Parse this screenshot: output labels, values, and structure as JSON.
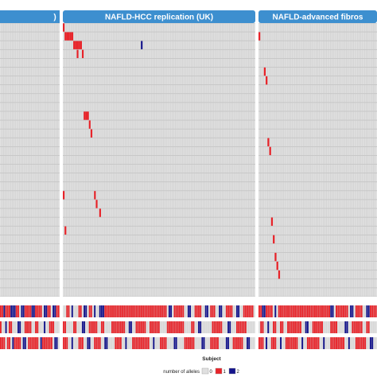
{
  "chart_data": {
    "type": "heatmap",
    "title": "",
    "xlabel": "Subject",
    "legend": {
      "title": "number of alleles",
      "placement": "bottom-center",
      "entries": [
        {
          "value": 0,
          "label": "0",
          "color": "#e0e0e0"
        },
        {
          "value": 1,
          "label": "1",
          "color": "#e8242a"
        },
        {
          "value": 2,
          "label": "2",
          "color": "#14148c"
        }
      ]
    },
    "panels": [
      {
        "title": ")",
        "columns": 34
      },
      {
        "title": "NAFLD-HCC replication (UK)",
        "columns": 111
      },
      {
        "title": "NAFLD-advanced fibros",
        "columns": 66
      }
    ],
    "rare_variant_rows": 31,
    "rare_variant_calls": [
      {
        "panel": 1,
        "row": 0,
        "col": 0,
        "alleles": 1
      },
      {
        "panel": 1,
        "row": 1,
        "col": 1,
        "alleles": 1
      },
      {
        "panel": 1,
        "row": 1,
        "col": 2,
        "alleles": 1
      },
      {
        "panel": 1,
        "row": 1,
        "col": 3,
        "alleles": 1
      },
      {
        "panel": 1,
        "row": 1,
        "col": 4,
        "alleles": 1
      },
      {
        "panel": 1,
        "row": 1,
        "col": 5,
        "alleles": 1
      },
      {
        "panel": 1,
        "row": 2,
        "col": 6,
        "alleles": 1
      },
      {
        "panel": 1,
        "row": 2,
        "col": 7,
        "alleles": 1
      },
      {
        "panel": 1,
        "row": 2,
        "col": 8,
        "alleles": 1
      },
      {
        "panel": 1,
        "row": 2,
        "col": 9,
        "alleles": 1
      },
      {
        "panel": 1,
        "row": 2,
        "col": 10,
        "alleles": 1
      },
      {
        "panel": 1,
        "row": 2,
        "col": 45,
        "alleles": 2
      },
      {
        "panel": 1,
        "row": 3,
        "col": 8,
        "alleles": 1
      },
      {
        "panel": 1,
        "row": 3,
        "col": 11,
        "alleles": 1
      },
      {
        "panel": 1,
        "row": 10,
        "col": 12,
        "alleles": 1
      },
      {
        "panel": 1,
        "row": 10,
        "col": 13,
        "alleles": 1
      },
      {
        "panel": 1,
        "row": 10,
        "col": 14,
        "alleles": 1
      },
      {
        "panel": 1,
        "row": 11,
        "col": 15,
        "alleles": 1
      },
      {
        "panel": 1,
        "row": 12,
        "col": 16,
        "alleles": 1
      },
      {
        "panel": 1,
        "row": 19,
        "col": 0,
        "alleles": 1
      },
      {
        "panel": 1,
        "row": 19,
        "col": 18,
        "alleles": 1
      },
      {
        "panel": 1,
        "row": 20,
        "col": 19,
        "alleles": 1
      },
      {
        "panel": 1,
        "row": 21,
        "col": 21,
        "alleles": 1
      },
      {
        "panel": 1,
        "row": 23,
        "col": 1,
        "alleles": 1
      },
      {
        "panel": 2,
        "row": 1,
        "col": 0,
        "alleles": 1
      },
      {
        "panel": 2,
        "row": 5,
        "col": 3,
        "alleles": 1
      },
      {
        "panel": 2,
        "row": 6,
        "col": 4,
        "alleles": 1
      },
      {
        "panel": 2,
        "row": 13,
        "col": 5,
        "alleles": 1
      },
      {
        "panel": 2,
        "row": 14,
        "col": 6,
        "alleles": 1
      },
      {
        "panel": 2,
        "row": 22,
        "col": 7,
        "alleles": 1
      },
      {
        "panel": 2,
        "row": 24,
        "col": 8,
        "alleles": 1
      },
      {
        "panel": 2,
        "row": 26,
        "col": 9,
        "alleles": 1
      },
      {
        "panel": 2,
        "row": 27,
        "col": 10,
        "alleles": 1
      },
      {
        "panel": 2,
        "row": 28,
        "col": 11,
        "alleles": 1
      }
    ],
    "common_variant_rows": [
      {
        "row": 0,
        "panel": 0,
        "runs": [
          [
            0,
            2,
            1
          ],
          [
            2,
            3,
            2
          ],
          [
            3,
            6,
            1
          ],
          [
            6,
            9,
            2
          ],
          [
            9,
            11,
            1
          ],
          [
            12,
            14,
            2
          ],
          [
            14,
            18,
            1
          ],
          [
            18,
            20,
            2
          ],
          [
            20,
            24,
            1
          ],
          [
            25,
            27,
            2
          ],
          [
            27,
            29,
            1
          ],
          [
            30,
            32,
            2
          ],
          [
            32,
            34,
            1
          ]
        ]
      },
      {
        "row": 1,
        "panel": 0,
        "runs": [
          [
            0,
            1,
            1
          ],
          [
            3,
            4,
            2
          ],
          [
            5,
            7,
            1
          ],
          [
            10,
            12,
            2
          ],
          [
            14,
            18,
            1
          ],
          [
            20,
            22,
            1
          ],
          [
            25,
            26,
            2
          ],
          [
            28,
            31,
            1
          ]
        ]
      },
      {
        "row": 2,
        "panel": 0,
        "runs": [
          [
            0,
            3,
            1
          ],
          [
            4,
            6,
            1
          ],
          [
            7,
            8,
            2
          ],
          [
            8,
            12,
            1
          ],
          [
            13,
            15,
            2
          ],
          [
            16,
            22,
            1
          ],
          [
            23,
            24,
            2
          ],
          [
            24,
            30,
            1
          ],
          [
            31,
            33,
            2
          ]
        ]
      },
      {
        "row": 0,
        "panel": 1,
        "runs": [
          [
            2,
            4,
            1
          ],
          [
            5,
            6,
            2
          ],
          [
            9,
            11,
            1
          ],
          [
            12,
            14,
            2
          ],
          [
            15,
            17,
            1
          ],
          [
            18,
            19,
            2
          ],
          [
            21,
            24,
            2
          ],
          [
            24,
            60,
            1
          ],
          [
            61,
            63,
            2
          ],
          [
            64,
            70,
            1
          ],
          [
            72,
            74,
            2
          ],
          [
            76,
            80,
            1
          ],
          [
            82,
            84,
            2
          ],
          [
            85,
            88,
            1
          ],
          [
            90,
            92,
            2
          ],
          [
            94,
            98,
            1
          ],
          [
            100,
            102,
            2
          ],
          [
            104,
            110,
            1
          ]
        ]
      },
      {
        "row": 1,
        "panel": 1,
        "runs": [
          [
            0,
            2,
            1
          ],
          [
            6,
            8,
            1
          ],
          [
            11,
            13,
            2
          ],
          [
            15,
            20,
            1
          ],
          [
            22,
            24,
            1
          ],
          [
            28,
            36,
            1
          ],
          [
            38,
            40,
            2
          ],
          [
            42,
            48,
            1
          ],
          [
            50,
            56,
            1
          ],
          [
            60,
            70,
            1
          ],
          [
            74,
            76,
            1
          ],
          [
            78,
            80,
            2
          ],
          [
            86,
            92,
            1
          ],
          [
            95,
            97,
            2
          ],
          [
            100,
            106,
            1
          ]
        ]
      },
      {
        "row": 2,
        "panel": 1,
        "runs": [
          [
            0,
            3,
            1
          ],
          [
            5,
            6,
            2
          ],
          [
            9,
            12,
            1
          ],
          [
            14,
            16,
            2
          ],
          [
            18,
            22,
            1
          ],
          [
            24,
            26,
            2
          ],
          [
            30,
            34,
            1
          ],
          [
            36,
            37,
            2
          ],
          [
            40,
            50,
            1
          ],
          [
            52,
            53,
            2
          ],
          [
            56,
            60,
            1
          ],
          [
            64,
            66,
            2
          ],
          [
            70,
            76,
            1
          ],
          [
            80,
            82,
            2
          ],
          [
            85,
            90,
            1
          ],
          [
            94,
            96,
            2
          ],
          [
            98,
            104,
            1
          ],
          [
            106,
            108,
            2
          ]
        ]
      },
      {
        "row": 0,
        "panel": 2,
        "runs": [
          [
            0,
            2,
            1
          ],
          [
            2,
            4,
            2
          ],
          [
            4,
            8,
            1
          ],
          [
            9,
            10,
            2
          ],
          [
            11,
            40,
            1
          ],
          [
            40,
            42,
            2
          ],
          [
            43,
            50,
            1
          ],
          [
            51,
            53,
            2
          ],
          [
            54,
            58,
            1
          ],
          [
            60,
            62,
            2
          ],
          [
            62,
            66,
            1
          ]
        ]
      },
      {
        "row": 1,
        "panel": 2,
        "runs": [
          [
            1,
            3,
            1
          ],
          [
            5,
            6,
            2
          ],
          [
            8,
            10,
            1
          ],
          [
            12,
            14,
            1
          ],
          [
            16,
            24,
            1
          ],
          [
            26,
            28,
            2
          ],
          [
            30,
            36,
            1
          ],
          [
            40,
            44,
            1
          ],
          [
            48,
            50,
            2
          ],
          [
            52,
            58,
            1
          ],
          [
            60,
            62,
            1
          ]
        ]
      },
      {
        "row": 2,
        "panel": 2,
        "runs": [
          [
            0,
            3,
            1
          ],
          [
            4,
            5,
            2
          ],
          [
            7,
            10,
            1
          ],
          [
            12,
            13,
            2
          ],
          [
            15,
            22,
            1
          ],
          [
            24,
            25,
            2
          ],
          [
            27,
            34,
            1
          ],
          [
            36,
            37,
            2
          ],
          [
            40,
            48,
            1
          ],
          [
            50,
            51,
            2
          ],
          [
            54,
            60,
            1
          ],
          [
            62,
            64,
            2
          ]
        ]
      }
    ]
  }
}
